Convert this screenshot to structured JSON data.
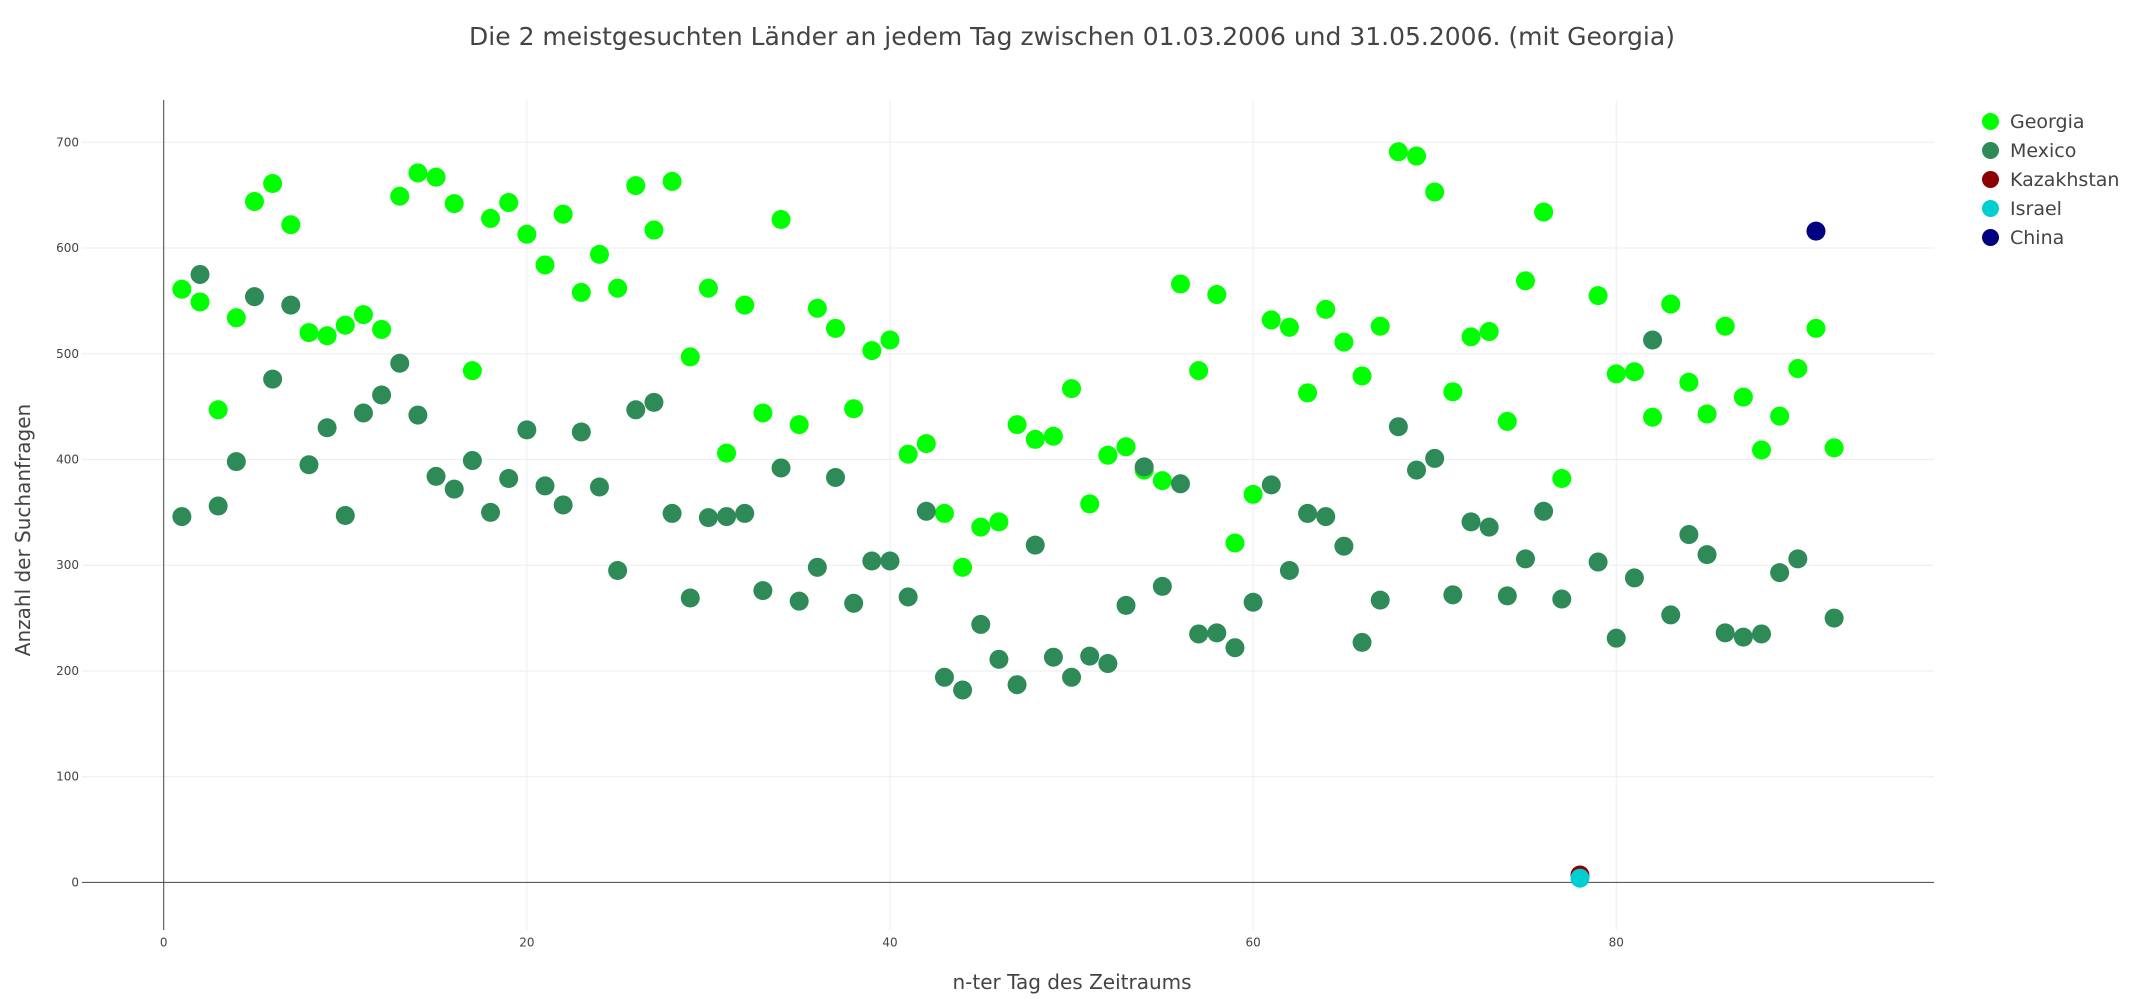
{
  "chart_data": {
    "type": "scatter",
    "title": "Die 2 meistgesuchten Länder an jedem Tag zwischen 01.03.2006 und 31.05.2006. (mit Georgia)",
    "xlabel": "n-ter Tag des Zeitraums",
    "ylabel": "Anzahl der Suchanfragen",
    "xlim": [
      -4.5,
      97.5
    ],
    "ylim": [
      -45,
      740
    ],
    "xticks": [
      0,
      20,
      40,
      60,
      80
    ],
    "yticks": [
      0,
      100,
      200,
      300,
      400,
      500,
      600,
      700
    ],
    "grid": true,
    "legend_position": "top-right",
    "series": [
      {
        "name": "Georgia",
        "color": "#00ff00",
        "points": [
          [
            1,
            561
          ],
          [
            2,
            549
          ],
          [
            3,
            447
          ],
          [
            4,
            534
          ],
          [
            5,
            644
          ],
          [
            6,
            661
          ],
          [
            7,
            622
          ],
          [
            8,
            520
          ],
          [
            9,
            517
          ],
          [
            10,
            527
          ],
          [
            11,
            537
          ],
          [
            12,
            523
          ],
          [
            13,
            649
          ],
          [
            14,
            671
          ],
          [
            15,
            667
          ],
          [
            16,
            642
          ],
          [
            17,
            484
          ],
          [
            18,
            628
          ],
          [
            19,
            643
          ],
          [
            20,
            613
          ],
          [
            21,
            584
          ],
          [
            22,
            632
          ],
          [
            23,
            558
          ],
          [
            24,
            594
          ],
          [
            25,
            562
          ],
          [
            26,
            659
          ],
          [
            27,
            617
          ],
          [
            28,
            663
          ],
          [
            29,
            497
          ],
          [
            30,
            562
          ],
          [
            31,
            406
          ],
          [
            32,
            546
          ],
          [
            33,
            444
          ],
          [
            34,
            627
          ],
          [
            35,
            433
          ],
          [
            36,
            543
          ],
          [
            37,
            524
          ],
          [
            38,
            448
          ],
          [
            39,
            503
          ],
          [
            40,
            513
          ],
          [
            41,
            405
          ],
          [
            42,
            415
          ],
          [
            43,
            349
          ],
          [
            44,
            298
          ],
          [
            45,
            336
          ],
          [
            46,
            341
          ],
          [
            47,
            433
          ],
          [
            48,
            419
          ],
          [
            49,
            422
          ],
          [
            50,
            467
          ],
          [
            51,
            358
          ],
          [
            52,
            404
          ],
          [
            53,
            412
          ],
          [
            54,
            390
          ],
          [
            55,
            380
          ],
          [
            56,
            566
          ],
          [
            57,
            484
          ],
          [
            58,
            556
          ],
          [
            59,
            321
          ],
          [
            60,
            367
          ],
          [
            61,
            532
          ],
          [
            62,
            525
          ],
          [
            63,
            463
          ],
          [
            64,
            542
          ],
          [
            65,
            511
          ],
          [
            66,
            479
          ],
          [
            67,
            526
          ],
          [
            68,
            691
          ],
          [
            69,
            687
          ],
          [
            70,
            653
          ],
          [
            71,
            464
          ],
          [
            72,
            516
          ],
          [
            73,
            521
          ],
          [
            74,
            436
          ],
          [
            75,
            569
          ],
          [
            76,
            634
          ],
          [
            77,
            382
          ],
          [
            79,
            555
          ],
          [
            80,
            481
          ],
          [
            81,
            483
          ],
          [
            82,
            440
          ],
          [
            83,
            547
          ],
          [
            84,
            473
          ],
          [
            85,
            443
          ],
          [
            86,
            526
          ],
          [
            87,
            459
          ],
          [
            88,
            409
          ],
          [
            89,
            441
          ],
          [
            90,
            486
          ],
          [
            91,
            524
          ],
          [
            92,
            411
          ]
        ]
      },
      {
        "name": "Mexico",
        "color": "#2e8b57",
        "points": [
          [
            1,
            346
          ],
          [
            2,
            575
          ],
          [
            3,
            356
          ],
          [
            4,
            398
          ],
          [
            5,
            554
          ],
          [
            6,
            476
          ],
          [
            7,
            546
          ],
          [
            8,
            395
          ],
          [
            9,
            430
          ],
          [
            10,
            347
          ],
          [
            11,
            444
          ],
          [
            12,
            461
          ],
          [
            13,
            491
          ],
          [
            14,
            442
          ],
          [
            15,
            384
          ],
          [
            16,
            372
          ],
          [
            17,
            399
          ],
          [
            18,
            350
          ],
          [
            19,
            382
          ],
          [
            20,
            428
          ],
          [
            21,
            375
          ],
          [
            22,
            357
          ],
          [
            23,
            426
          ],
          [
            24,
            374
          ],
          [
            25,
            295
          ],
          [
            26,
            447
          ],
          [
            27,
            454
          ],
          [
            28,
            349
          ],
          [
            29,
            269
          ],
          [
            30,
            345
          ],
          [
            31,
            346
          ],
          [
            32,
            349
          ],
          [
            33,
            276
          ],
          [
            34,
            392
          ],
          [
            35,
            266
          ],
          [
            36,
            298
          ],
          [
            37,
            383
          ],
          [
            38,
            264
          ],
          [
            39,
            304
          ],
          [
            40,
            304
          ],
          [
            41,
            270
          ],
          [
            42,
            351
          ],
          [
            43,
            194
          ],
          [
            44,
            182
          ],
          [
            45,
            244
          ],
          [
            46,
            211
          ],
          [
            47,
            187
          ],
          [
            48,
            319
          ],
          [
            49,
            213
          ],
          [
            50,
            194
          ],
          [
            51,
            214
          ],
          [
            52,
            207
          ],
          [
            53,
            262
          ],
          [
            54,
            393
          ],
          [
            55,
            280
          ],
          [
            56,
            377
          ],
          [
            57,
            235
          ],
          [
            58,
            236
          ],
          [
            59,
            222
          ],
          [
            60,
            265
          ],
          [
            61,
            376
          ],
          [
            62,
            295
          ],
          [
            63,
            349
          ],
          [
            64,
            346
          ],
          [
            65,
            318
          ],
          [
            66,
            227
          ],
          [
            67,
            267
          ],
          [
            68,
            431
          ],
          [
            69,
            390
          ],
          [
            70,
            401
          ],
          [
            71,
            272
          ],
          [
            72,
            341
          ],
          [
            73,
            336
          ],
          [
            74,
            271
          ],
          [
            75,
            306
          ],
          [
            76,
            351
          ],
          [
            77,
            268
          ],
          [
            79,
            303
          ],
          [
            80,
            231
          ],
          [
            81,
            288
          ],
          [
            82,
            513
          ],
          [
            83,
            253
          ],
          [
            84,
            329
          ],
          [
            85,
            310
          ],
          [
            86,
            236
          ],
          [
            87,
            232
          ],
          [
            88,
            235
          ],
          [
            89,
            293
          ],
          [
            90,
            306
          ],
          [
            92,
            250
          ]
        ]
      },
      {
        "name": "Kazakhstan",
        "color": "#8b0000",
        "points": [
          [
            78,
            7
          ]
        ]
      },
      {
        "name": "Israel",
        "color": "#00ced1",
        "points": [
          [
            78,
            4
          ]
        ]
      },
      {
        "name": "China",
        "color": "#000080",
        "points": [
          [
            91,
            616
          ]
        ]
      }
    ]
  }
}
